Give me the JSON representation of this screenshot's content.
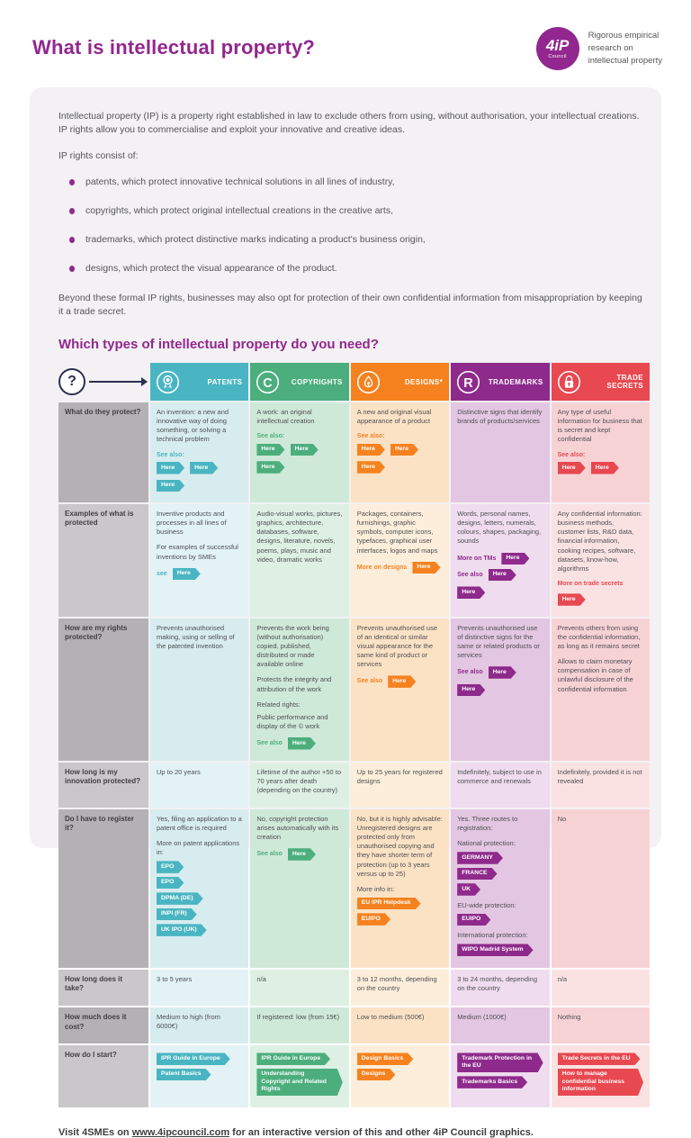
{
  "header": {
    "title": "What is intellectual property?",
    "logo_main": "4iP",
    "logo_sub": "Council",
    "tagline_lines": [
      "Rigorous empirical",
      "research on",
      "intellectual property"
    ]
  },
  "intro": {
    "p1": "Intellectual property (IP) is a property right established in law to exclude others from using, without authorisation, your intellectual creations. IP rights allow you to commercialise and exploit your innovative and creative ideas.",
    "p2": "IP rights consist of:",
    "bullets": [
      "patents, which protect innovative technical solutions in all lines of industry,",
      "copyrights, which protect original intellectual creations in the creative arts,",
      "trademarks, which protect distinctive marks indicating a product's business origin,",
      "designs, which protect the visual appearance of the product."
    ],
    "p3": "Beyond these formal IP rights, businesses may also opt for protection of their own confidential information from misappropriation by keeping it a trade secret."
  },
  "section_heading": "Which types of intellectual property do you need?",
  "colors": {
    "brand_purple": "#92278f",
    "navy": "#2e2e50",
    "card_bg": "#f3f1f3",
    "body_text": "#55565a"
  },
  "table": {
    "question_mark": "?",
    "columns": [
      {
        "key": "patents",
        "label": "PATENTS",
        "icon": "award-badge-icon",
        "color": "#4ab5c2",
        "tint": "#d7ecef",
        "tint_light": "#e3f2f4"
      },
      {
        "key": "copyrights",
        "label": "COPYRIGHTS",
        "icon": "copyright-c-icon",
        "color": "#4cae7d",
        "tint": "#cfe9d8",
        "tint_light": "#def0e4"
      },
      {
        "key": "designs",
        "label": "DESIGNS*",
        "icon": "pen-nib-icon",
        "color": "#f5821f",
        "tint": "#fbe2c5",
        "tint_light": "#fceeda"
      },
      {
        "key": "trademarks",
        "label": "TRADEMARKS",
        "icon": "registered-r-icon",
        "color": "#8e2a8b",
        "tint": "#e3c6e2",
        "tint_light": "#efdcee"
      },
      {
        "key": "trade-secrets",
        "label": "TRADE SECRETS",
        "icon": "padlock-icon",
        "color": "#e84850",
        "tint": "#f7d2d5",
        "tint_light": "#fae2e3"
      }
    ],
    "row_label_dark": "#b3b1b3",
    "row_label_light": "#c9c7c9",
    "rows": [
      {
        "label": "What do they protect?",
        "cells": [
          [
            {
              "t": "p",
              "text": "An invention: a new and innovative way of doing something, or solving a technical problem"
            },
            {
              "t": "seealso",
              "label": "See also:",
              "tags": [
                "Here",
                "Here",
                "Here"
              ]
            }
          ],
          [
            {
              "t": "p",
              "text": "A work: an original intellectual creation"
            },
            {
              "t": "seealso",
              "label": "See also:",
              "tags": [
                "Here",
                "Here",
                "Here"
              ]
            }
          ],
          [
            {
              "t": "p",
              "text": "A new and original visual appearance of a product"
            },
            {
              "t": "seealso",
              "label": "See also:",
              "tags": [
                "Here",
                "Here",
                "Here"
              ]
            }
          ],
          [
            {
              "t": "p",
              "text": "Distinctive signs that identify brands of products/services"
            }
          ],
          [
            {
              "t": "p",
              "text": "Any type of useful information for business that is secret and kept confidential"
            },
            {
              "t": "seealso",
              "label": "See also:",
              "tags": [
                "Here",
                "Here"
              ]
            }
          ]
        ]
      },
      {
        "label": "Examples of what is protected",
        "cells": [
          [
            {
              "t": "p",
              "text": "Inventive products and processes in all lines of business"
            },
            {
              "t": "p",
              "text": "For examples of successful inventions by SMEs"
            },
            {
              "t": "inline",
              "label": "see",
              "tags": [
                "Here"
              ]
            }
          ],
          [
            {
              "t": "p",
              "text": "Audio-visual works, pictures, graphics, architecture, databases, software, designs, literature, novels, poems, plays, music and video, dramatic works"
            }
          ],
          [
            {
              "t": "p",
              "text": "Packages, containers, furnishings, graphic symbols, computer icons, typefaces, graphical user interfaces, logos and maps"
            },
            {
              "t": "inline",
              "label": "More on designs",
              "tags": [
                "Here"
              ]
            }
          ],
          [
            {
              "t": "p",
              "text": "Words, personal names, designs, letters, numerals, colours, shapes, packaging, sounds"
            },
            {
              "t": "inline",
              "label": "More on TMs",
              "tags": [
                "Here"
              ]
            },
            {
              "t": "inline",
              "label": "See also",
              "tags": [
                "Here",
                "Here"
              ]
            }
          ],
          [
            {
              "t": "p",
              "text": "Any confidential information: business methods, customer lists, R&D data, financial information, cooking recipes, software, datasets, know-how, algorithms"
            },
            {
              "t": "inline",
              "label": "More on trade secrets",
              "tags": [
                "Here"
              ]
            }
          ]
        ]
      },
      {
        "label": "How are my rights protected?",
        "cells": [
          [
            {
              "t": "p",
              "text": "Prevents unauthorised making, using or selling of the patented invention"
            }
          ],
          [
            {
              "t": "p",
              "text": "Prevents the work being (without authorisation) copied, published, distributed or made available online"
            },
            {
              "t": "p",
              "text": "Protects the integrity and attribution of the work"
            },
            {
              "t": "label",
              "text": "Related rights:"
            },
            {
              "t": "p",
              "text": "Public performance and display of the © work"
            },
            {
              "t": "inline",
              "label": "See also",
              "tags": [
                "Here"
              ]
            }
          ],
          [
            {
              "t": "p",
              "text": "Prevents unauthorised use of an identical or similar visual appearance for the same kind of product or services"
            },
            {
              "t": "inline",
              "label": "See also",
              "tags": [
                "Here"
              ]
            }
          ],
          [
            {
              "t": "p",
              "text": "Prevents unauthorised use of distinctive signs for the same or related products or services"
            },
            {
              "t": "inline",
              "label": "See also",
              "tags": [
                "Here",
                "Here"
              ]
            }
          ],
          [
            {
              "t": "p",
              "text": "Prevents others from using the confidential information, as long as it remains secret"
            },
            {
              "t": "p",
              "text": "Allows to claim monetary compensation in case of unlawful disclosure of the confidential information"
            }
          ]
        ]
      },
      {
        "label": "How long is my innovation protected?",
        "cells": [
          [
            {
              "t": "p",
              "text": "Up to 20 years"
            }
          ],
          [
            {
              "t": "p",
              "text": "Lifetime of the author +50 to 70 years after death (depending on the country)"
            }
          ],
          [
            {
              "t": "p",
              "text": "Up to 25 years for registered designs"
            }
          ],
          [
            {
              "t": "p",
              "text": "Indefinitely, subject to use in commerce and renewals"
            }
          ],
          [
            {
              "t": "p",
              "text": "Indefinitely, provided it is not revealed"
            }
          ]
        ]
      },
      {
        "label": "Do I have to register it?",
        "cells": [
          [
            {
              "t": "p",
              "text": "Yes, filing an application to a patent office is required"
            },
            {
              "t": "label",
              "text": "More on patent applications in:"
            },
            {
              "t": "tags",
              "tags": [
                "EPO",
                "EPO",
                "DPMA (DE)",
                "INPI (FR)",
                "UK IPO (UK)"
              ]
            }
          ],
          [
            {
              "t": "p",
              "text": "No, copyright protection arises automatically with its creation"
            },
            {
              "t": "inline",
              "label": "See also",
              "tags": [
                "Here"
              ]
            }
          ],
          [
            {
              "t": "p",
              "text": "No, but it is highly advisable: Unregistered designs are protected only from unauthorised copying and they have shorter term of protection (up to 3 years versus up to 25)"
            },
            {
              "t": "label",
              "text": "More info in:"
            },
            {
              "t": "tags",
              "tags": [
                "EU IPR Helpdesk",
                "EUIPO"
              ]
            }
          ],
          [
            {
              "t": "p",
              "text": "Yes. Three routes to registration:"
            },
            {
              "t": "label",
              "text": "National protection:"
            },
            {
              "t": "tags",
              "tags": [
                "GERMANY",
                "FRANCE",
                "UK"
              ]
            },
            {
              "t": "label",
              "text": "EU-wide protection:"
            },
            {
              "t": "tags",
              "tags": [
                "EUIPO"
              ]
            },
            {
              "t": "label",
              "text": "International protection:"
            },
            {
              "t": "tags",
              "tags": [
                "WIPO Madrid System"
              ]
            }
          ],
          [
            {
              "t": "p",
              "text": "No"
            }
          ]
        ]
      },
      {
        "label": "How long does it take?",
        "cells": [
          [
            {
              "t": "p",
              "text": "3 to 5 years"
            }
          ],
          [
            {
              "t": "p",
              "text": "n/a"
            }
          ],
          [
            {
              "t": "p",
              "text": "3 to 12 months, depending on the country"
            }
          ],
          [
            {
              "t": "p",
              "text": "3 to 24 months, depending on the country"
            }
          ],
          [
            {
              "t": "p",
              "text": "n/a"
            }
          ]
        ]
      },
      {
        "label": "How much does it cost?",
        "cells": [
          [
            {
              "t": "p",
              "text": "Medium to high (from 6000€)"
            }
          ],
          [
            {
              "t": "p",
              "text": "If registered: low (from 15€)"
            }
          ],
          [
            {
              "t": "p",
              "text": "Low to medium (500€)"
            }
          ],
          [
            {
              "t": "p",
              "text": "Medium (1000€)"
            }
          ],
          [
            {
              "t": "p",
              "text": "Nothing"
            }
          ]
        ]
      },
      {
        "label": "How do I start?",
        "cells": [
          [
            {
              "t": "tags",
              "tags": [
                "IPR Guide in Europe",
                "Patent Basics"
              ]
            }
          ],
          [
            {
              "t": "tags",
              "tags": [
                "IPR Guide in Europe",
                "Understanding Copyright and Related Rights"
              ]
            }
          ],
          [
            {
              "t": "tags",
              "tags": [
                "Design Basics",
                "Designs"
              ]
            }
          ],
          [
            {
              "t": "tags",
              "tags": [
                "Trademark Protection in the EU",
                "Trademarks Basics"
              ]
            }
          ],
          [
            {
              "t": "tags",
              "tags": [
                "Trade Secrets in the EU",
                "How to manage confidential business information"
              ]
            }
          ]
        ]
      }
    ]
  },
  "footer": {
    "prefix": "Visit 4SMEs on ",
    "link": "www.4ipcouncil.com",
    "suffix": " for an interactive version of this and other 4iP Council graphics."
  }
}
